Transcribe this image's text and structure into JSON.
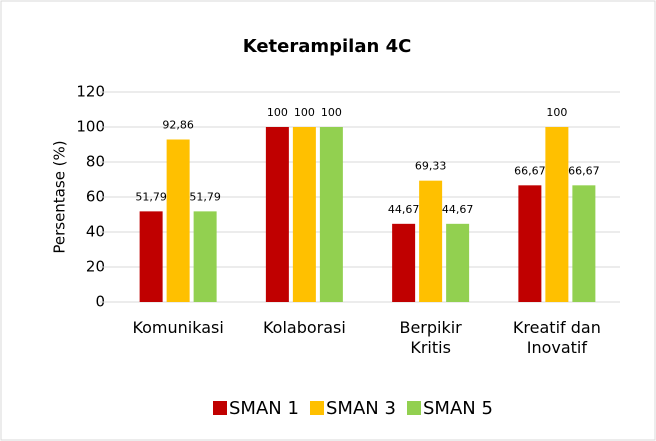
{
  "chart_data": {
    "type": "bar",
    "title": "Keterampilan 4C",
    "y_label": "Persentase (%)",
    "categories": [
      "Komunikasi",
      "Kolaborasi",
      "Berpikir Kritis",
      "Kreatif dan Inovatif"
    ],
    "series": [
      {
        "name": "SMAN 1",
        "color": "#c00000",
        "values": [
          51.79,
          100,
          44.67,
          66.67
        ],
        "value_labels": [
          "51,79",
          "100",
          "44,67",
          "66,67"
        ]
      },
      {
        "name": "SMAN 3",
        "color": "#ffc000",
        "values": [
          92.86,
          100,
          69.33,
          100
        ],
        "value_labels": [
          "92,86",
          "100",
          "69,33",
          "100"
        ]
      },
      {
        "name": "SMAN 5",
        "color": "#92d050",
        "values": [
          51.79,
          100,
          44.67,
          66.67
        ],
        "value_labels": [
          "51,79",
          "100",
          "44,67",
          "66,67"
        ]
      }
    ],
    "ylim": [
      0,
      120
    ],
    "yticks": [
      0,
      20,
      40,
      60,
      80,
      100,
      120
    ],
    "grid": true,
    "legend": "bottom"
  }
}
